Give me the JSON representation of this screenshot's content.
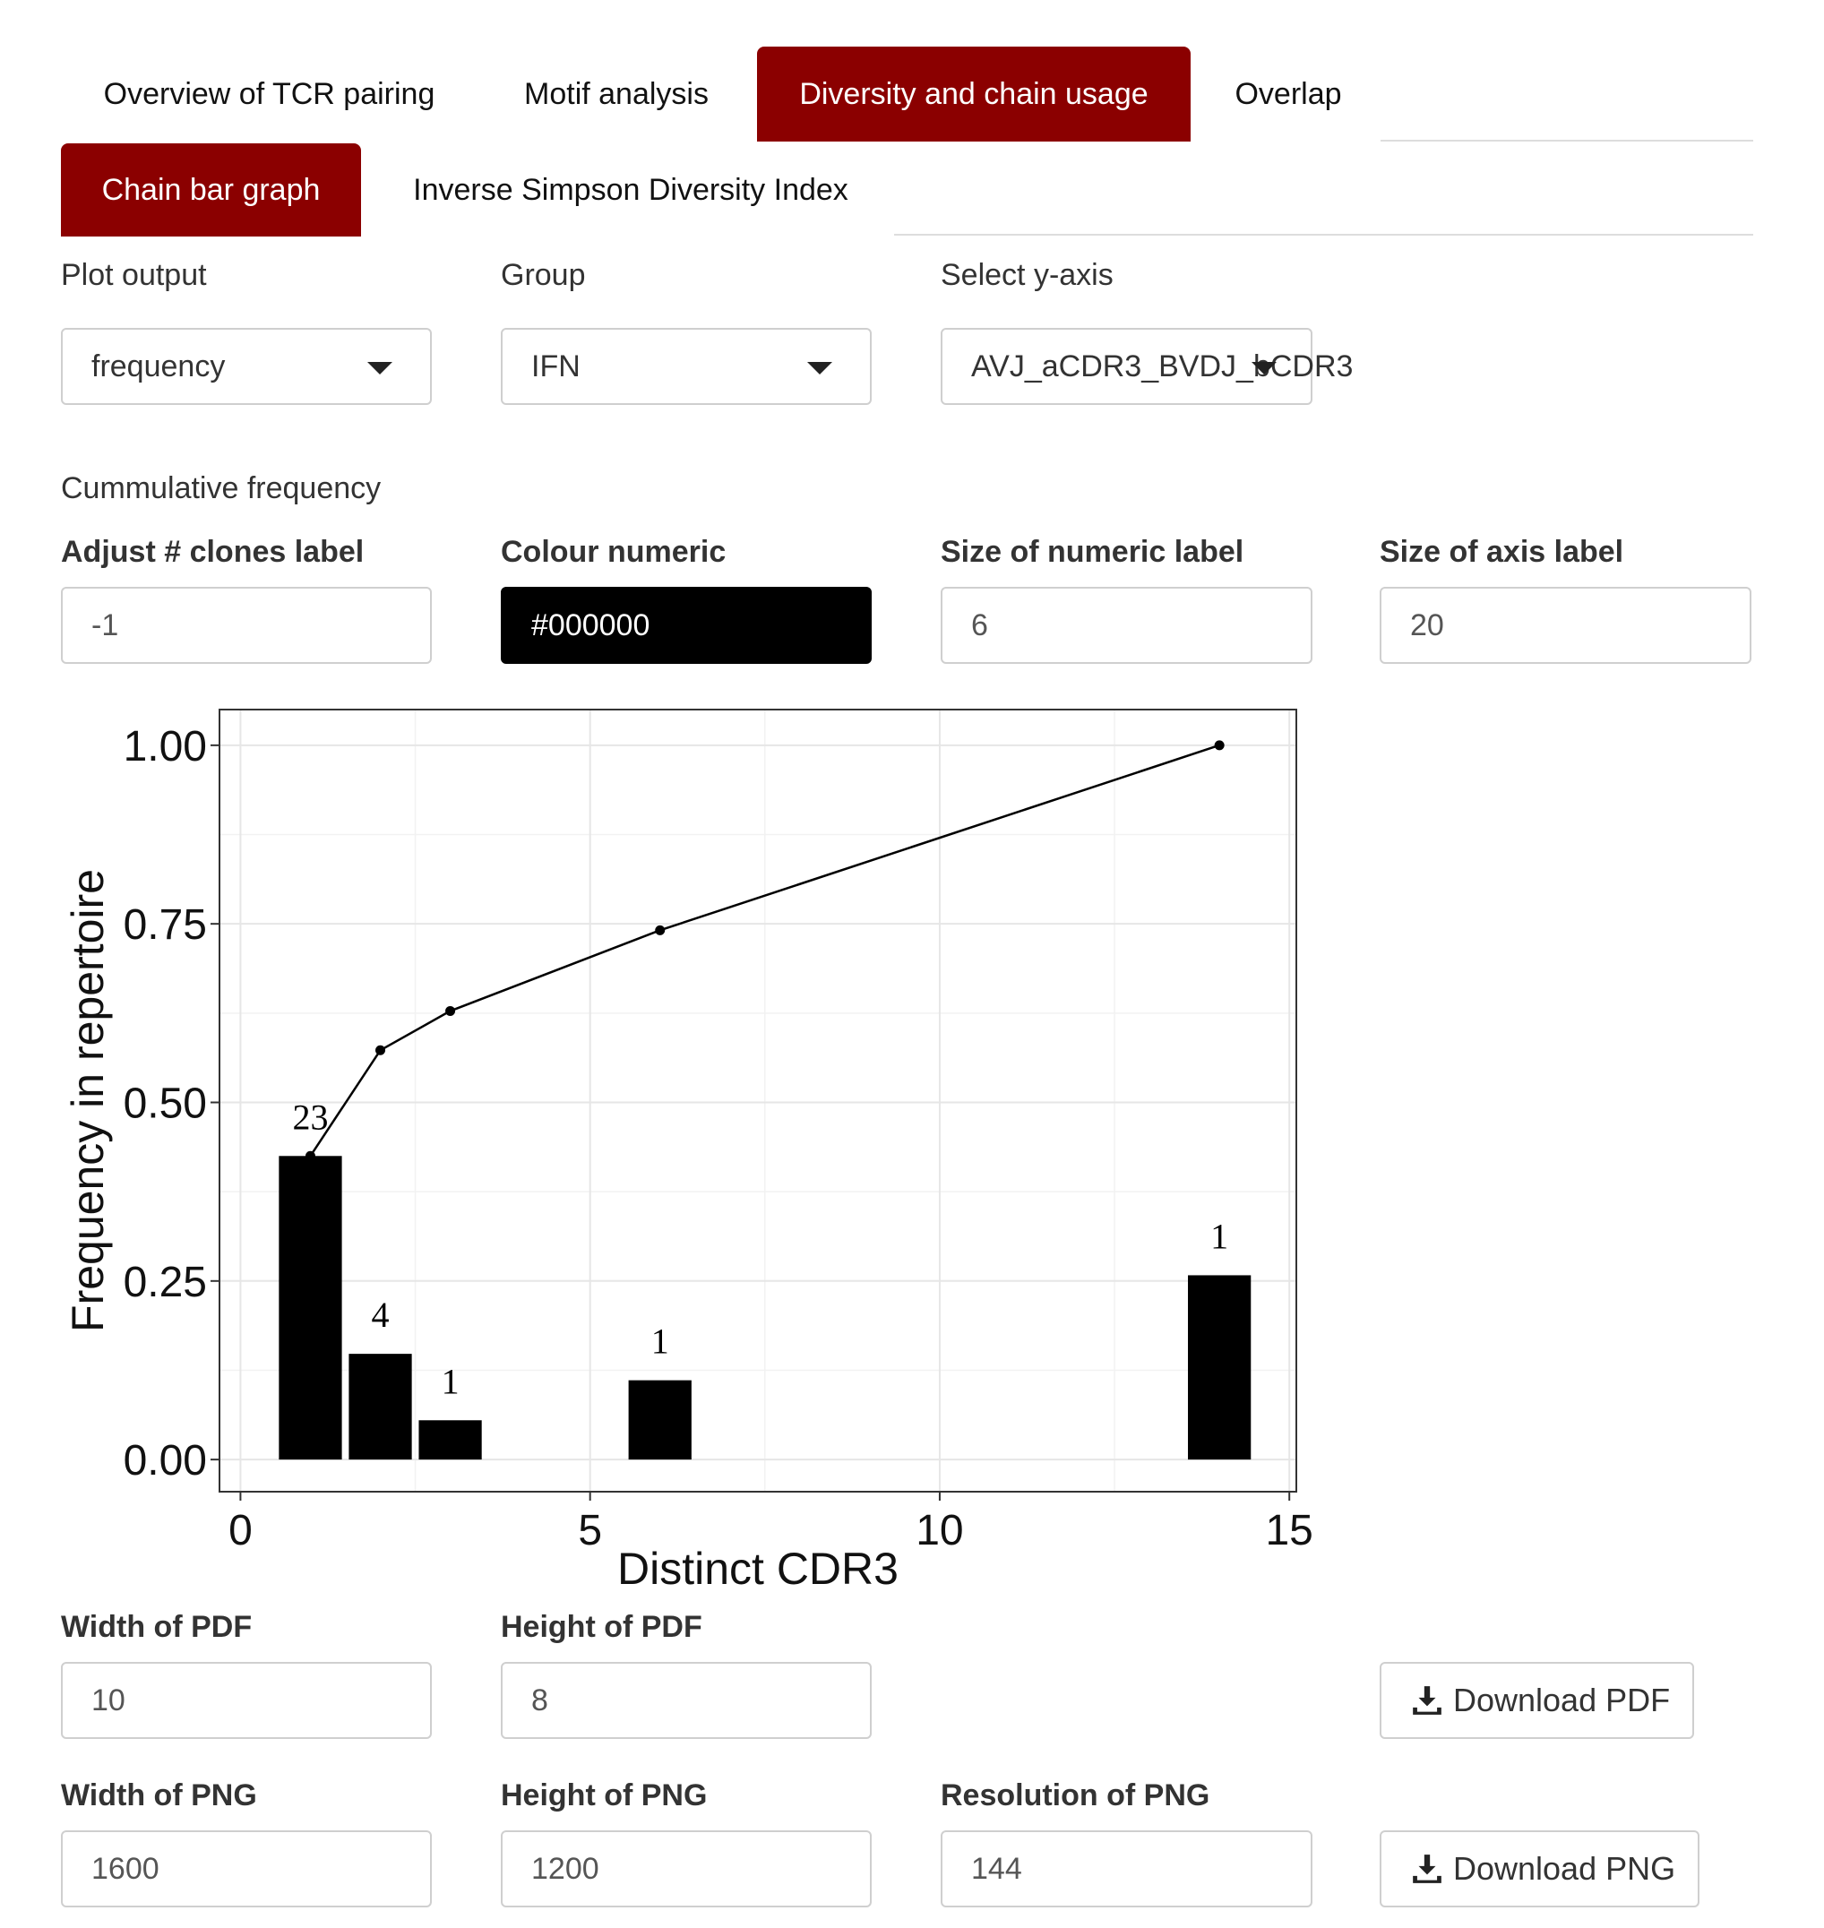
{
  "tabs_main": [
    {
      "label": "Overview of TCR pairing",
      "active": false
    },
    {
      "label": "Motif analysis",
      "active": false
    },
    {
      "label": "Diversity and chain usage",
      "active": true
    },
    {
      "label": "Overlap",
      "active": false
    }
  ],
  "tabs_sub": [
    {
      "label": "Chain bar graph",
      "active": true
    },
    {
      "label": "Inverse Simpson Diversity Index",
      "active": false
    }
  ],
  "controls": {
    "plot_output": {
      "label": "Plot output",
      "value": "frequency"
    },
    "group": {
      "label": "Group",
      "value": "IFN"
    },
    "y_axis": {
      "label": "Select y-axis",
      "value": "AVJ_aCDR3_BVDJ_bCDR3"
    },
    "cumulative_label": "Cummulative frequency",
    "adjust_clones": {
      "label": "Adjust # clones label",
      "value": "-1"
    },
    "colour_numeric": {
      "label": "Colour numeric",
      "value": "#000000"
    },
    "size_numeric": {
      "label": "Size of numeric label",
      "value": "6"
    },
    "size_axis": {
      "label": "Size of axis label",
      "value": "20"
    }
  },
  "export": {
    "pdf_width": {
      "label": "Width of PDF",
      "value": "10"
    },
    "pdf_height": {
      "label": "Height of PDF",
      "value": "8"
    },
    "download_pdf": "Download PDF",
    "png_width": {
      "label": "Width of PNG",
      "value": "1600"
    },
    "png_height": {
      "label": "Height of PNG",
      "value": "1200"
    },
    "png_res": {
      "label": "Resolution of PNG",
      "value": "144"
    },
    "download_png": "Download PNG"
  },
  "colors": {
    "accent": "#8b0000",
    "bar": "#000000"
  },
  "icons": {
    "download": "download-icon",
    "dropdown": "chevron-down-icon"
  },
  "chart_data": {
    "type": "bar",
    "xlabel": "Distinct CDR3",
    "ylabel": "Frequency in repertoire",
    "xlim": [
      -0.3,
      15.1
    ],
    "ylim": [
      -0.045,
      1.05
    ],
    "xticks": [
      0,
      5,
      10,
      15
    ],
    "yticks": [
      0.0,
      0.25,
      0.5,
      0.75,
      1.0
    ],
    "ytick_labels": [
      "0.00",
      "0.25",
      "0.50",
      "0.75",
      "1.00"
    ],
    "grid": true,
    "bars": [
      {
        "x": 1,
        "y": 0.425,
        "label": "23"
      },
      {
        "x": 2,
        "y": 0.148,
        "label": "4"
      },
      {
        "x": 3,
        "y": 0.055,
        "label": "1"
      },
      {
        "x": 6,
        "y": 0.111,
        "label": "1"
      },
      {
        "x": 14,
        "y": 0.258,
        "label": "1"
      }
    ],
    "series": [
      {
        "type": "line",
        "x": [
          1,
          2,
          3,
          6,
          14
        ],
        "y": [
          0.425,
          0.573,
          0.628,
          0.741,
          1.0
        ]
      }
    ]
  }
}
